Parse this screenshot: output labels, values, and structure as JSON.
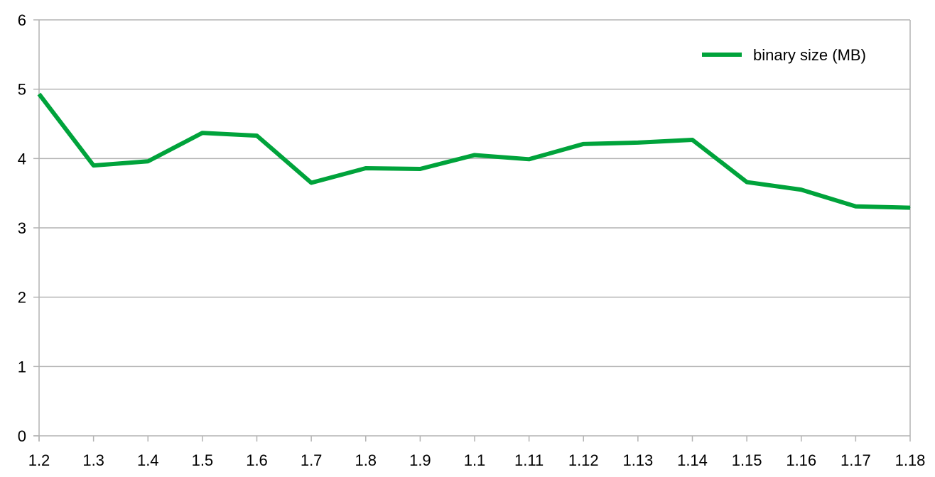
{
  "chart_data": {
    "type": "line",
    "title": "",
    "xlabel": "",
    "ylabel": "",
    "categories": [
      "1.2",
      "1.3",
      "1.4",
      "1.5",
      "1.6",
      "1.7",
      "1.8",
      "1.9",
      "1.1",
      "1.11",
      "1.12",
      "1.13",
      "1.14",
      "1.15",
      "1.16",
      "1.17",
      "1.18"
    ],
    "series": [
      {
        "name": "binary size (MB)",
        "color": "#00a33b",
        "values": [
          4.93,
          3.9,
          3.96,
          4.37,
          4.33,
          3.65,
          3.86,
          3.85,
          4.05,
          3.99,
          4.21,
          4.23,
          4.27,
          3.66,
          3.55,
          3.31,
          3.29
        ]
      }
    ],
    "ylim": [
      0,
      6
    ],
    "yticks": [
      "0",
      "1",
      "2",
      "3",
      "4",
      "5",
      "6"
    ],
    "grid": true,
    "legend_position": "top-right"
  }
}
